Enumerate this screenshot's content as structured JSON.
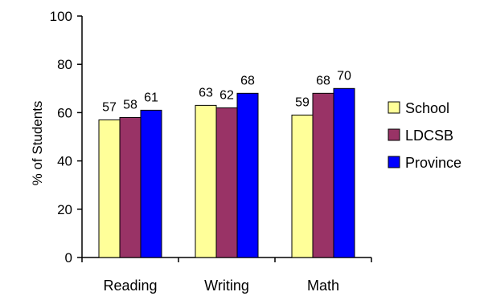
{
  "chart_data": {
    "type": "bar",
    "categories": [
      "Reading",
      "Writing",
      "Math"
    ],
    "series": [
      {
        "name": "School",
        "values": [
          57,
          63,
          59
        ],
        "color": "#FFFF99"
      },
      {
        "name": "LDCSB",
        "values": [
          58,
          62,
          68
        ],
        "color": "#993366"
      },
      {
        "name": "Province",
        "values": [
          61,
          68,
          70
        ],
        "color": "#0000FF"
      }
    ],
    "data_labels": [
      [
        "57",
        "63",
        "59"
      ],
      [
        "58",
        "62",
        "68"
      ],
      [
        "61",
        "68",
        "70"
      ]
    ],
    "xlabel": "",
    "ylabel": "% of Students",
    "ylim": [
      0,
      100
    ],
    "yticks": [
      0,
      20,
      40,
      60,
      80,
      100
    ],
    "ytick_labels": [
      "0",
      "20",
      "40",
      "60",
      "80",
      "100"
    ],
    "grid": false,
    "legend_position": "right"
  }
}
